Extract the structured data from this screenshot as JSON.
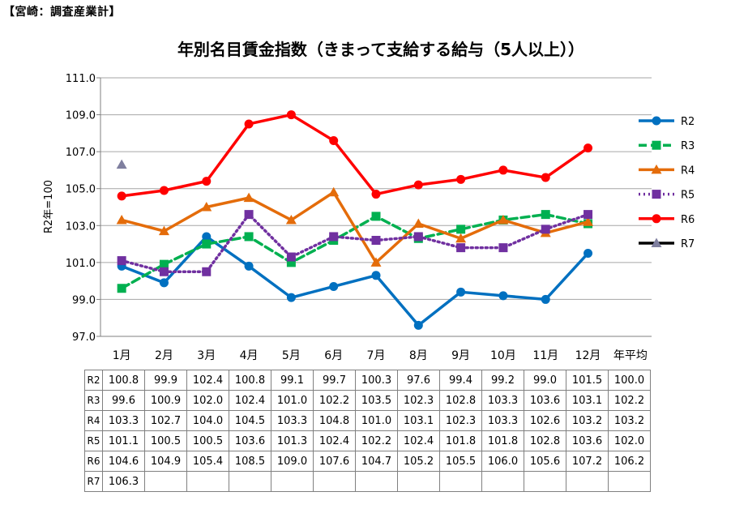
{
  "header": "【宮崎：調査産業計】",
  "chart_data": {
    "type": "line",
    "title": "年別名目賃金指数（きまって支給する給与（5人以上））",
    "ylabel": "R2年=100",
    "xlabel": "",
    "categories": [
      "1月",
      "2月",
      "3月",
      "4月",
      "5月",
      "6月",
      "7月",
      "8月",
      "9月",
      "10月",
      "11月",
      "12月",
      "年平均"
    ],
    "yticks": [
      "97.0",
      "99.0",
      "101.0",
      "103.0",
      "105.0",
      "107.0",
      "109.0",
      "111.0"
    ],
    "ylim": [
      97.0,
      111.0
    ],
    "grid": true,
    "legend_position": "right",
    "series": [
      {
        "name": "R2",
        "color": "#0070C0",
        "marker": "circle",
        "dash": "solid",
        "values": [
          100.8,
          99.9,
          102.4,
          100.8,
          99.1,
          99.7,
          100.3,
          97.6,
          99.4,
          99.2,
          99.0,
          101.5,
          null
        ],
        "labels": [
          "100.8",
          "99.9",
          "102.4",
          "100.8",
          "99.1",
          "99.7",
          "100.3",
          "97.6",
          "99.4",
          "99.2",
          "99.0",
          "101.5",
          "100.0"
        ]
      },
      {
        "name": "R3",
        "color": "#00B050",
        "marker": "square",
        "dash": "dashed",
        "values": [
          99.6,
          100.9,
          102.0,
          102.4,
          101.0,
          102.2,
          103.5,
          102.3,
          102.8,
          103.3,
          103.6,
          103.1,
          null
        ],
        "labels": [
          "99.6",
          "100.9",
          "102.0",
          "102.4",
          "101.0",
          "102.2",
          "103.5",
          "102.3",
          "102.8",
          "103.3",
          "103.6",
          "103.1",
          "102.2"
        ]
      },
      {
        "name": "R4",
        "color": "#E46C0A",
        "marker": "triangle",
        "dash": "solid",
        "values": [
          103.3,
          102.7,
          104.0,
          104.5,
          103.3,
          104.8,
          101.0,
          103.1,
          102.3,
          103.3,
          102.6,
          103.2,
          null
        ],
        "labels": [
          "103.3",
          "102.7",
          "104.0",
          "104.5",
          "103.3",
          "104.8",
          "101.0",
          "103.1",
          "102.3",
          "103.3",
          "102.6",
          "103.2",
          "103.2"
        ]
      },
      {
        "name": "R5",
        "color": "#7030A0",
        "marker": "square",
        "dash": "dotted",
        "values": [
          101.1,
          100.5,
          100.5,
          103.6,
          101.3,
          102.4,
          102.2,
          102.4,
          101.8,
          101.8,
          102.8,
          103.6,
          null
        ],
        "labels": [
          "101.1",
          "100.5",
          "100.5",
          "103.6",
          "101.3",
          "102.4",
          "102.2",
          "102.4",
          "101.8",
          "101.8",
          "102.8",
          "103.6",
          "102.0"
        ]
      },
      {
        "name": "R6",
        "color": "#FF0000",
        "marker": "circle",
        "dash": "solid",
        "values": [
          104.6,
          104.9,
          105.4,
          108.5,
          109.0,
          107.6,
          104.7,
          105.2,
          105.5,
          106.0,
          105.6,
          107.2,
          null
        ],
        "labels": [
          "104.6",
          "104.9",
          "105.4",
          "108.5",
          "109.0",
          "107.6",
          "104.7",
          "105.2",
          "105.5",
          "106.0",
          "105.6",
          "107.2",
          "106.2"
        ]
      },
      {
        "name": "R7",
        "color": "#000000",
        "markerColor": "#7F7F9F",
        "marker": "triangle",
        "dash": "solid",
        "values": [
          106.3,
          null,
          null,
          null,
          null,
          null,
          null,
          null,
          null,
          null,
          null,
          null,
          null
        ],
        "labels": [
          "106.3",
          "",
          "",
          "",
          "",
          "",
          "",
          "",
          "",
          "",
          "",
          "",
          ""
        ]
      }
    ]
  }
}
